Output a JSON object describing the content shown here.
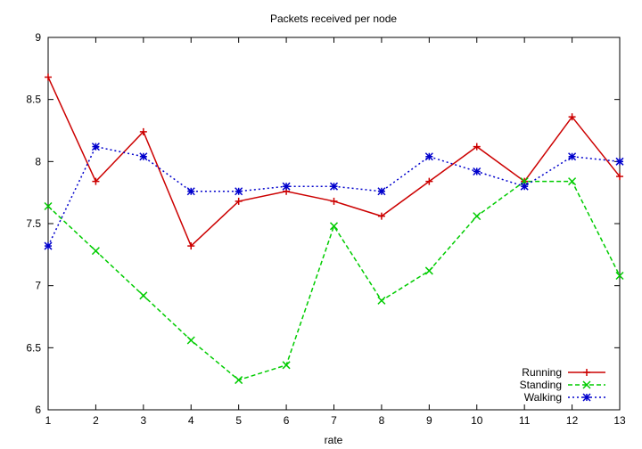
{
  "chart_data": {
    "type": "line",
    "title": "Packets received per node",
    "xlabel": "rate",
    "ylabel": "",
    "xlim": [
      1,
      13
    ],
    "ylim": [
      6,
      9
    ],
    "x_ticks": [
      1,
      2,
      3,
      4,
      5,
      6,
      7,
      8,
      9,
      10,
      11,
      12,
      13
    ],
    "y_ticks": [
      6,
      6.5,
      7,
      7.5,
      8,
      8.5,
      9
    ],
    "legend_position": "bottom-right",
    "grid": false,
    "x": [
      1,
      2,
      3,
      4,
      5,
      6,
      7,
      8,
      9,
      10,
      11,
      12,
      13
    ],
    "series": [
      {
        "name": "Running",
        "color": "#cc0000",
        "line_style": "solid",
        "marker": "plus",
        "values": [
          8.68,
          7.84,
          8.24,
          7.32,
          7.68,
          7.76,
          7.68,
          7.56,
          7.84,
          8.12,
          7.84,
          8.36,
          7.88
        ]
      },
      {
        "name": "Standing",
        "color": "#00cc00",
        "line_style": "dashed",
        "marker": "cross",
        "values": [
          7.64,
          7.28,
          6.92,
          6.56,
          6.24,
          6.36,
          7.48,
          6.88,
          7.12,
          7.56,
          7.84,
          7.84,
          7.08
        ]
      },
      {
        "name": "Walking",
        "color": "#0000cc",
        "line_style": "dotted",
        "marker": "star",
        "values": [
          7.32,
          8.12,
          8.04,
          7.76,
          7.76,
          7.8,
          7.8,
          7.76,
          8.04,
          7.92,
          7.8,
          8.04,
          8.0
        ]
      }
    ]
  }
}
